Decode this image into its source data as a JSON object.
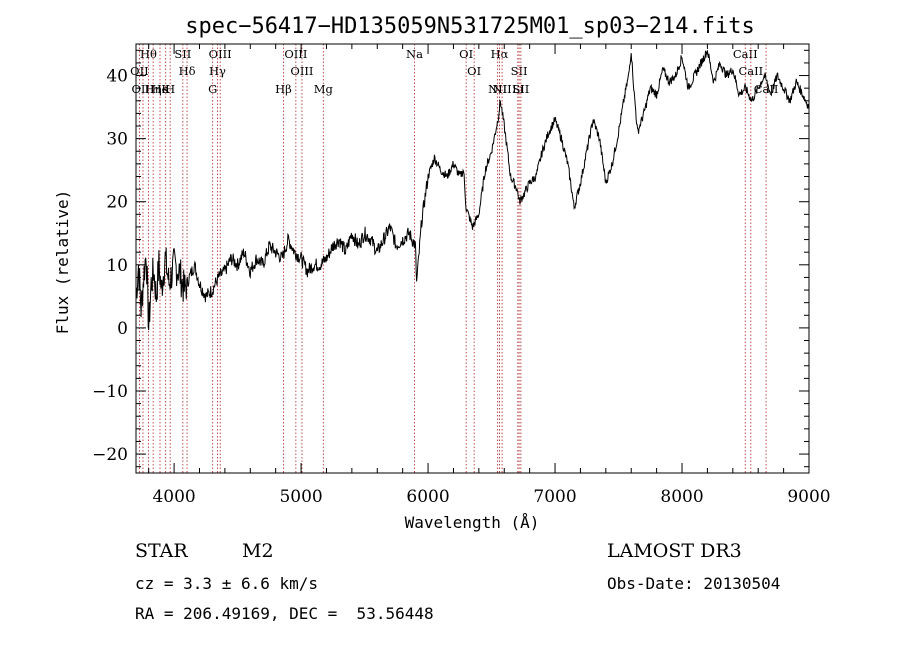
{
  "chart_data": {
    "type": "line",
    "title": "spec−56417−HD135059N531725M01_sp03−214.fits",
    "xlabel": "Wavelength (Å)",
    "ylabel": "Flux (relative)",
    "xlim": [
      3700,
      9000
    ],
    "ylim": [
      -23,
      45
    ],
    "xticks": [
      4000,
      5000,
      6000,
      7000,
      8000,
      9000
    ],
    "yticks": [
      -20,
      -10,
      0,
      10,
      20,
      30,
      40
    ],
    "ytick_labels": [
      "−20",
      "−10",
      "0",
      "10",
      "20",
      "30",
      "40"
    ],
    "series": [
      {
        "name": "flux",
        "x": [
          3700,
          3720,
          3740,
          3760,
          3780,
          3800,
          3820,
          3840,
          3860,
          3880,
          3900,
          3930,
          3960,
          4000,
          4040,
          4080,
          4120,
          4160,
          4200,
          4250,
          4300,
          4350,
          4400,
          4450,
          4500,
          4550,
          4600,
          4650,
          4700,
          4750,
          4800,
          4850,
          4900,
          4950,
          5000,
          5050,
          5100,
          5150,
          5200,
          5250,
          5300,
          5350,
          5400,
          5450,
          5500,
          5550,
          5600,
          5650,
          5700,
          5750,
          5800,
          5850,
          5900,
          5910,
          5950,
          6000,
          6050,
          6100,
          6150,
          6200,
          6250,
          6280,
          6300,
          6350,
          6400,
          6450,
          6500,
          6550,
          6570,
          6600,
          6650,
          6700,
          6720,
          6750,
          6800,
          6850,
          6900,
          6950,
          7000,
          7050,
          7100,
          7130,
          7150,
          7200,
          7250,
          7300,
          7350,
          7400,
          7450,
          7500,
          7550,
          7580,
          7600,
          7620,
          7650,
          7700,
          7750,
          7800,
          7850,
          7900,
          7950,
          8000,
          8050,
          8100,
          8150,
          8200,
          8250,
          8300,
          8350,
          8400,
          8450,
          8500,
          8550,
          8600,
          8650,
          8700,
          8750,
          8800,
          8850,
          8900,
          8950,
          9000
        ],
        "y": [
          5,
          10,
          3,
          8,
          12,
          0,
          7,
          9,
          5,
          10,
          6,
          11,
          7,
          10,
          9,
          6,
          8,
          10,
          7,
          5,
          6,
          8,
          9,
          11,
          10,
          12,
          9,
          11,
          10,
          13,
          12,
          11,
          14,
          12,
          11,
          9,
          10,
          10,
          11,
          13,
          14,
          12,
          15,
          13,
          15,
          14,
          12,
          14,
          16,
          13,
          14,
          15,
          13,
          7,
          17,
          24,
          27,
          25,
          24,
          26,
          24,
          25,
          19,
          16,
          18,
          25,
          28,
          33,
          36,
          32,
          24,
          22,
          20,
          21,
          23,
          24,
          28,
          31,
          33,
          30,
          26,
          22,
          19,
          23,
          28,
          33,
          30,
          23,
          26,
          31,
          37,
          40,
          44,
          38,
          31,
          34,
          38,
          37,
          41,
          39,
          40,
          43,
          38,
          40,
          42,
          44,
          39,
          42,
          40,
          41,
          37,
          38,
          36,
          38,
          40,
          37,
          40,
          38,
          36,
          39,
          37,
          35
        ]
      }
    ],
    "spectral_lines": [
      {
        "name": "Hθ",
        "wavelength": 3798
      },
      {
        "name": "OII",
        "wavelength": 3727
      },
      {
        "name": "OIII",
        "wavelength": 3755
      },
      {
        "name": "He",
        "wavelength": 3889
      },
      {
        "name": "Hη",
        "wavelength": 3835
      },
      {
        "name": "K",
        "wavelength": 3934
      },
      {
        "name": "SII",
        "wavelength": 4069
      },
      {
        "name": "H",
        "wavelength": 3969
      },
      {
        "name": "Hδ",
        "wavelength": 4102
      },
      {
        "name": "OIII",
        "wavelength": 4363
      },
      {
        "name": "Hγ",
        "wavelength": 4341
      },
      {
        "name": "G",
        "wavelength": 4304
      },
      {
        "name": "OIII",
        "wavelength": 4959
      },
      {
        "name": "OIII",
        "wavelength": 5007
      },
      {
        "name": "Hβ",
        "wavelength": 4861
      },
      {
        "name": "Mg",
        "wavelength": 5175
      },
      {
        "name": "Na",
        "wavelength": 5893
      },
      {
        "name": "OI",
        "wavelength": 6300
      },
      {
        "name": "OI",
        "wavelength": 6363
      },
      {
        "name": "Hα",
        "wavelength": 6563
      },
      {
        "name": "SII",
        "wavelength": 6717
      },
      {
        "name": "NII",
        "wavelength": 6548
      },
      {
        "name": "Li",
        "wavelength": 6707
      },
      {
        "name": "NII",
        "wavelength": 6583
      },
      {
        "name": "SII",
        "wavelength": 6731
      },
      {
        "name": "CaII",
        "wavelength": 8498
      },
      {
        "name": "CaII",
        "wavelength": 8542
      },
      {
        "name": "CaII",
        "wavelength": 8662
      }
    ]
  },
  "info": {
    "object_type": "STAR",
    "subclass": "M2",
    "survey": "LAMOST DR3",
    "redshift_text": "cz = 3.3 ± 6.6 km/s",
    "obs_date_text": "Obs-Date: 20130504",
    "coords_text": "RA = 206.49169, DEC =  53.56448"
  }
}
